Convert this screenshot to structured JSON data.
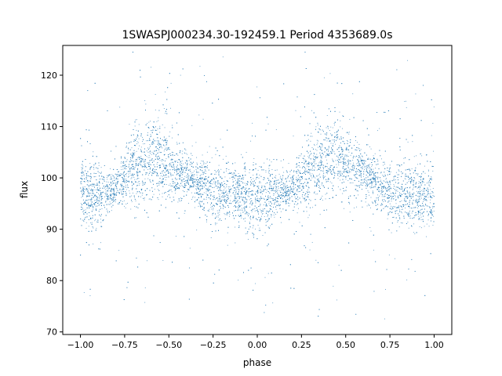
{
  "chart_data": {
    "type": "scatter",
    "title": "1SWASPJ000234.30-192459.1 Period 4353689.0s",
    "xlabel": "phase",
    "ylabel": "flux",
    "xlim": [
      -1.1,
      1.1
    ],
    "ylim": [
      69.5,
      125.8
    ],
    "xticks": [
      -1.0,
      -0.75,
      -0.5,
      -0.25,
      0.0,
      0.25,
      0.5,
      0.75,
      1.0
    ],
    "xtick_labels": [
      "−1.00",
      "−0.75",
      "−0.50",
      "−0.25",
      "0.00",
      "0.25",
      "0.50",
      "0.75",
      "1.00"
    ],
    "yticks": [
      70,
      80,
      90,
      100,
      110,
      120
    ],
    "ytick_labels": [
      "70",
      "80",
      "90",
      "100",
      "110",
      "120"
    ],
    "grid": false,
    "legend": "none",
    "point_color": "#1f77b4",
    "phase_range": [
      -1.0,
      1.0
    ],
    "flux_clip": [
      72.5,
      125
    ],
    "series": [
      {
        "phase_profile": [
          {
            "phase": -1.0,
            "center": 97,
            "spread": 6
          },
          {
            "phase": -0.95,
            "center": 96,
            "spread": 7
          },
          {
            "phase": -0.9,
            "center": 97,
            "spread": 5
          },
          {
            "phase": -0.8,
            "center": 98,
            "spread": 3
          },
          {
            "phase": -0.7,
            "center": 102,
            "spread": 7
          },
          {
            "phase": -0.6,
            "center": 104,
            "spread": 7
          },
          {
            "phase": -0.55,
            "center": 104,
            "spread": 8
          },
          {
            "phase": -0.45,
            "center": 101,
            "spread": 5
          },
          {
            "phase": -0.35,
            "center": 100,
            "spread": 4
          },
          {
            "phase": -0.25,
            "center": 97,
            "spread": 6
          },
          {
            "phase": -0.1,
            "center": 97,
            "spread": 5
          },
          {
            "phase": 0.0,
            "center": 95,
            "spread": 7
          },
          {
            "phase": 0.05,
            "center": 96,
            "spread": 6
          },
          {
            "phase": 0.1,
            "center": 97,
            "spread": 5
          },
          {
            "phase": 0.2,
            "center": 98,
            "spread": 3
          },
          {
            "phase": 0.3,
            "center": 102,
            "spread": 7
          },
          {
            "phase": 0.4,
            "center": 104,
            "spread": 7
          },
          {
            "phase": 0.45,
            "center": 104,
            "spread": 8
          },
          {
            "phase": 0.55,
            "center": 101,
            "spread": 5
          },
          {
            "phase": 0.65,
            "center": 100,
            "spread": 4
          },
          {
            "phase": 0.75,
            "center": 97,
            "spread": 6
          },
          {
            "phase": 0.9,
            "center": 97,
            "spread": 5
          },
          {
            "phase": 1.0,
            "center": 96,
            "spread": 6
          }
        ]
      }
    ]
  }
}
